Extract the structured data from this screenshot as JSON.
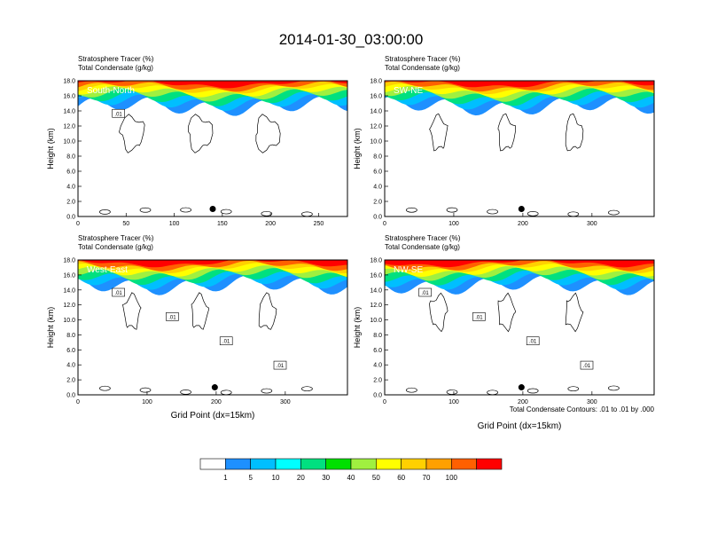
{
  "figure": {
    "title": "2014-01-30_03:00:00",
    "contour_note": "Total Condensate Contours: .01 to .01 by .000"
  },
  "colorbar": {
    "labels": [
      "1",
      "5",
      "10",
      "20",
      "30",
      "40",
      "50",
      "60",
      "70",
      "100"
    ],
    "colors": [
      "#ffffff",
      "#1e90ff",
      "#00bfff",
      "#00ffff",
      "#00e080",
      "#00e000",
      "#a0f040",
      "#ffff00",
      "#ffd000",
      "#ffa000",
      "#ff6000",
      "#ff0000"
    ]
  },
  "chart_data": [
    {
      "type": "heatmap",
      "panel_label": "South-North",
      "field_label_1": "Stratosphere Tracer",
      "field_unit_1": "(%)",
      "field_label_2": "Total Condensate",
      "field_unit_2": "(g/kg)",
      "ylabel": "Height (km)",
      "xlabel": "",
      "xlim": [
        0,
        280
      ],
      "ylim": [
        0,
        18
      ],
      "xticks": [
        "0",
        "50",
        "100",
        "150",
        "200",
        "250"
      ],
      "yticks": [
        "0.0",
        "2.0",
        "4.0",
        "6.0",
        "8.0",
        "10.0",
        "12.0",
        "14.0",
        "16.0",
        "18.0"
      ],
      "contour_labels": [
        ".01"
      ],
      "marker_x": 140,
      "marker_y": 1.0
    },
    {
      "type": "heatmap",
      "panel_label": "SW-NE",
      "field_label_1": "Stratosphere Tracer",
      "field_unit_1": "(%)",
      "field_label_2": "Total Condensate",
      "field_unit_2": "(g/kg)",
      "ylabel": "Height (km)",
      "xlabel": "",
      "xlim": [
        0,
        390
      ],
      "ylim": [
        0,
        18
      ],
      "xticks": [
        "0",
        "100",
        "200",
        "300"
      ],
      "yticks": [
        "0.0",
        "2.0",
        "4.0",
        "6.0",
        "8.0",
        "10.0",
        "12.0",
        "14.0",
        "16.0",
        "18.0"
      ],
      "contour_labels": [],
      "marker_x": 198,
      "marker_y": 1.0
    },
    {
      "type": "heatmap",
      "panel_label": "West-East",
      "field_label_1": "Stratosphere Tracer",
      "field_unit_1": "(%)",
      "field_label_2": "Total Condensate",
      "field_unit_2": "(g/kg)",
      "ylabel": "Height (km)",
      "xlabel": "Grid Point (dx=15km)",
      "xlim": [
        0,
        390
      ],
      "ylim": [
        0,
        18
      ],
      "xticks": [
        "0",
        "100",
        "200",
        "300"
      ],
      "yticks": [
        "0.0",
        "2.0",
        "4.0",
        "6.0",
        "8.0",
        "10.0",
        "12.0",
        "14.0",
        "16.0",
        "18.0"
      ],
      "contour_labels": [
        ".01",
        ".01",
        ".01",
        ".01"
      ],
      "marker_x": 198,
      "marker_y": 1.0
    },
    {
      "type": "heatmap",
      "panel_label": "NW-SE",
      "field_label_1": "Stratosphere Tracer",
      "field_unit_1": "(%)",
      "field_label_2": "Total Condensate",
      "field_unit_2": "(g/kg)",
      "ylabel": "Height (km)",
      "xlabel": "Grid Point (dx=15km)",
      "xlim": [
        0,
        390
      ],
      "ylim": [
        0,
        18
      ],
      "xticks": [
        "0",
        "100",
        "200",
        "300"
      ],
      "yticks": [
        "0.0",
        "2.0",
        "4.0",
        "6.0",
        "8.0",
        "10.0",
        "12.0",
        "14.0",
        "16.0",
        "18.0"
      ],
      "contour_labels": [
        ".01",
        ".01",
        ".01",
        ".01"
      ],
      "marker_x": 198,
      "marker_y": 1.0
    }
  ]
}
